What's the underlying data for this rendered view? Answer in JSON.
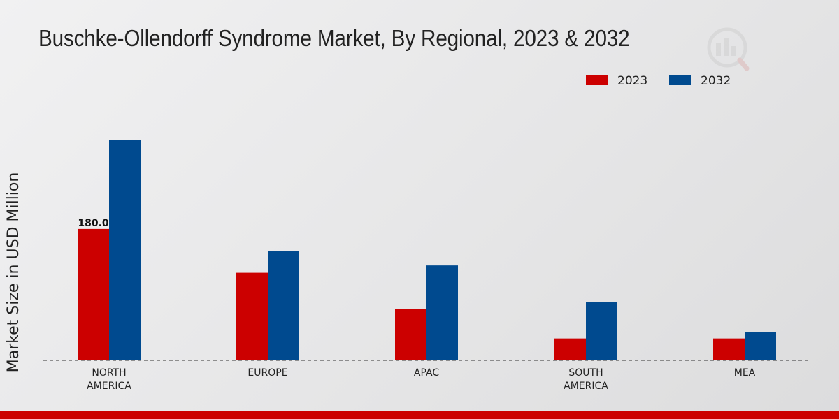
{
  "chart_data": {
    "type": "bar",
    "title": "Buschke-Ollendorff Syndrome Market, By Regional, 2023 & 2032",
    "xlabel": "",
    "ylabel": "Market Size in USD Million",
    "categories": [
      "NORTH\nAMERICA",
      "EUROPE",
      "APAC",
      "SOUTH\nAMERICA",
      "MEA"
    ],
    "series": [
      {
        "name": "2023",
        "color": "#cc0000",
        "values": [
          180.0,
          120.0,
          70.0,
          30.0,
          30.0
        ]
      },
      {
        "name": "2032",
        "color": "#004a8f",
        "values": [
          302.0,
          150.0,
          130.0,
          80.0,
          39.0
        ]
      }
    ],
    "data_labels": [
      {
        "series": 0,
        "category": 0,
        "text": "180.0"
      }
    ],
    "ylim": [
      0,
      400
    ],
    "grid": false,
    "legend_position": "top-right"
  },
  "theme": {
    "accent_bar_color": "#cc0000"
  }
}
